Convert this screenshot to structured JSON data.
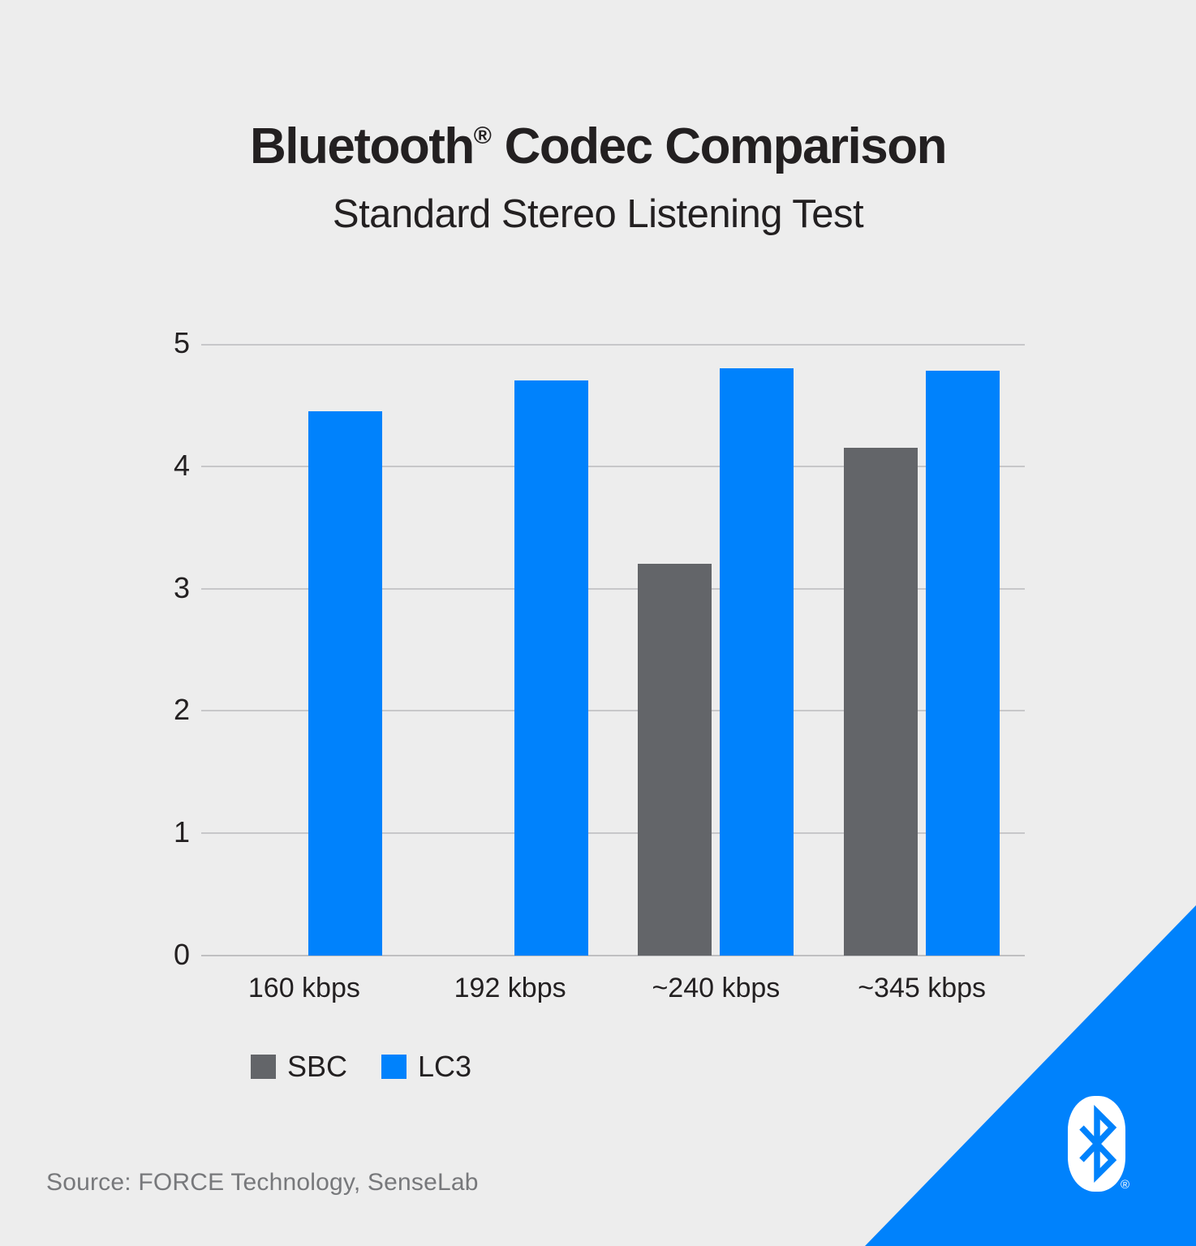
{
  "header": {
    "title_brand": "Bluetooth",
    "title_reg": "®",
    "title_rest": " Codec Comparison",
    "subtitle": "Standard Stereo Listening Test"
  },
  "chart_data": {
    "type": "bar",
    "title": "Bluetooth® Codec Comparison",
    "subtitle": "Standard Stereo Listening Test",
    "categories": [
      "160 kbps",
      "192 kbps",
      "~240 kbps",
      "~345 kbps"
    ],
    "series": [
      {
        "name": "SBC",
        "color": "#636569",
        "values": [
          null,
          null,
          3.2,
          4.15
        ]
      },
      {
        "name": "LC3",
        "color": "#0082FC",
        "values": [
          4.45,
          4.7,
          4.8,
          4.78
        ]
      }
    ],
    "ylim": [
      0,
      5
    ],
    "yticks": [
      0,
      1,
      2,
      3,
      4,
      5
    ],
    "xlabel": "",
    "ylabel": "",
    "grid": true,
    "legend_position": "bottom-left"
  },
  "footer": {
    "source": "Source: FORCE Technology, SenseLab"
  },
  "branding": {
    "logo": "bluetooth-logo",
    "registered_mark": "®",
    "accent_color": "#0082FC"
  },
  "colors": {
    "background": "#EDEDED",
    "grid": "#C7C7C9",
    "text_dark": "#232021",
    "text_gray": "#77787B",
    "sbc_gray": "#636569",
    "lc3_blue": "#0082FC"
  }
}
